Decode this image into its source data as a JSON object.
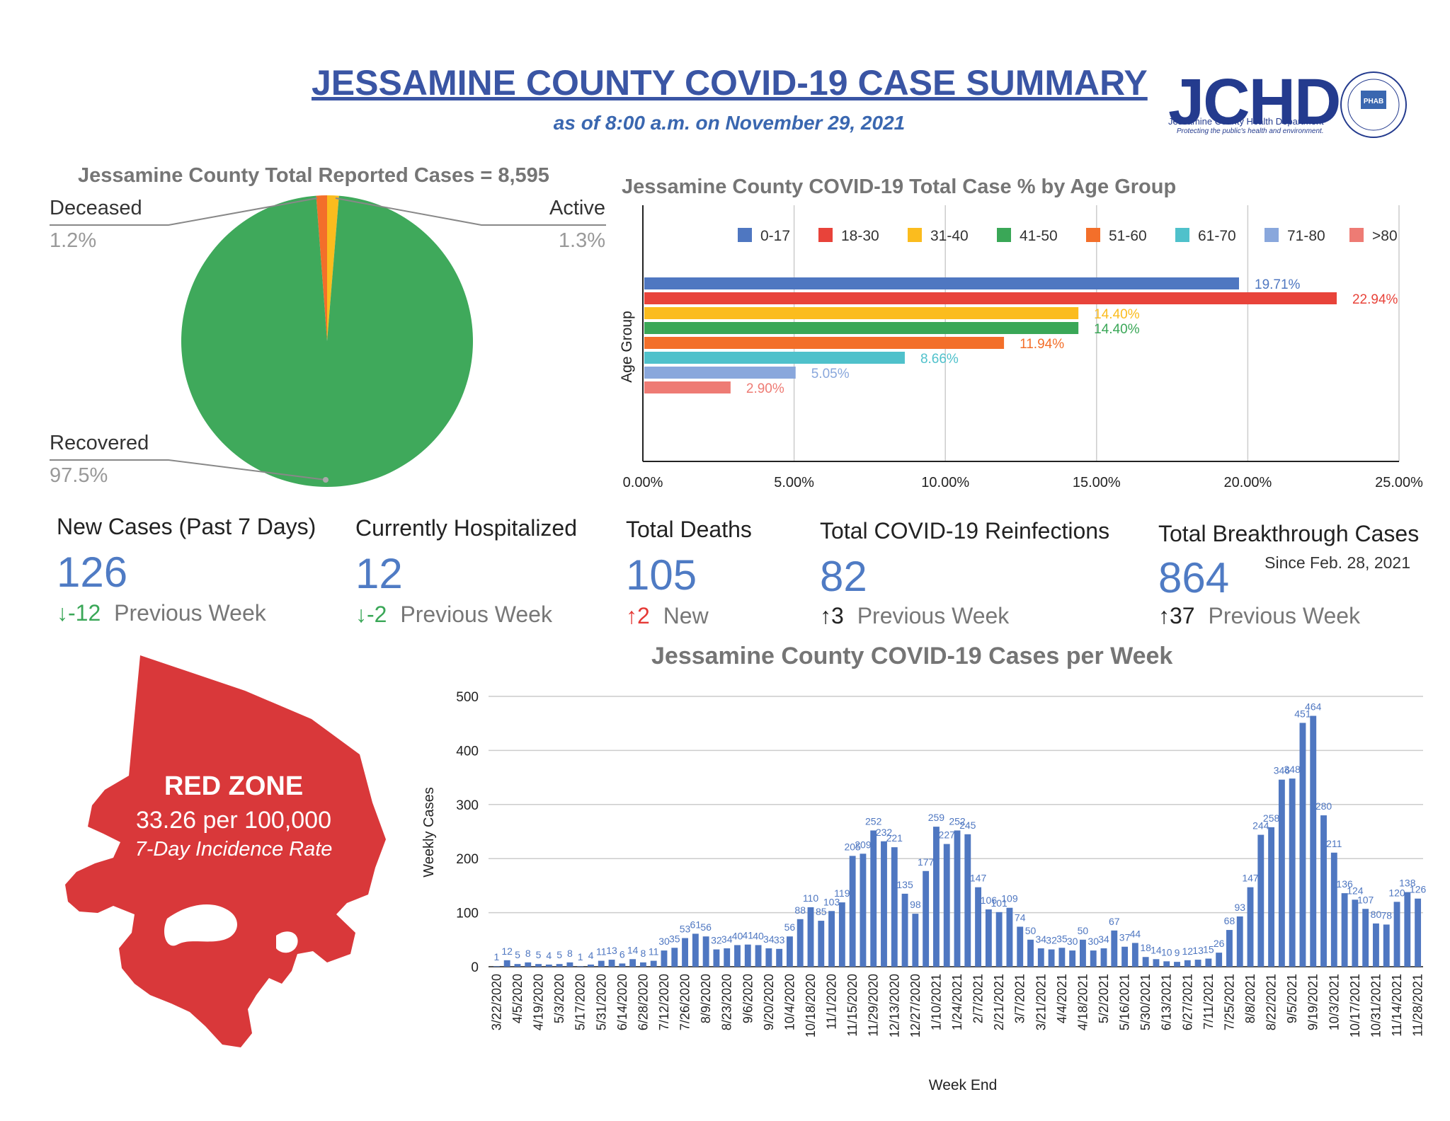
{
  "header": {
    "title": "JESSAMINE COUNTY COVID-19 CASE SUMMARY",
    "subtitle": "as of 8:00 a.m. on November 29, 2021",
    "logo_text": "JCHD",
    "logo_sub": "Jessamine County Health Department",
    "logo_tagline": "Protecting the public's health and environment.",
    "badge_text": "PHAB"
  },
  "colors": {
    "recovered": "#3fa95b",
    "deceased": "#f36f2a",
    "active": "#fbbc1e",
    "bar_blue": "#4f77c1",
    "zone_red": "#d9383a"
  },
  "stats": {
    "new_cases": {
      "label": "New Cases (Past 7 Days)",
      "value": "126",
      "arrow": "↓",
      "change": "-12",
      "note": "Previous Week"
    },
    "hospitalized": {
      "label": "Currently Hospitalized",
      "value": "12",
      "arrow": "↓",
      "change": "-2",
      "note": "Previous Week"
    },
    "deaths": {
      "label": "Total Deaths",
      "value": "105",
      "arrow": "↑",
      "change": "2",
      "note": "New"
    },
    "reinfections": {
      "label": "Total COVID-19 Reinfections",
      "value": "82",
      "arrow": "↑",
      "change": "3",
      "note": "Previous Week"
    },
    "breakthrough": {
      "label": "Total Breakthrough Cases",
      "value": "864",
      "since": "Since Feb. 28, 2021",
      "arrow": "↑",
      "change": "37",
      "note": "Previous Week"
    }
  },
  "zone": {
    "title": "RED ZONE",
    "rate": "33.26 per 100,000",
    "caption": "7-Day Incidence Rate"
  },
  "chart_data": [
    {
      "type": "pie",
      "title": "Jessamine County Total Reported Cases = 8,595",
      "labels": [
        "Recovered",
        "Deceased",
        "Active"
      ],
      "values": [
        97.5,
        1.2,
        1.3
      ],
      "value_labels": [
        "97.5%",
        "1.2%",
        "1.3%"
      ]
    },
    {
      "type": "bar",
      "orientation": "horizontal",
      "title": "Jessamine County COVID-19 Total Case % by Age Group",
      "ylabel": "Age Group",
      "xlim": [
        0,
        25
      ],
      "x_ticks": [
        "0.00%",
        "5.00%",
        "10.00%",
        "15.00%",
        "20.00%",
        "25.00%"
      ],
      "categories": [
        "0-17",
        "18-30",
        "31-40",
        "41-50",
        "51-60",
        "61-70",
        "71-80",
        ">80"
      ],
      "values": [
        19.71,
        22.94,
        14.4,
        14.4,
        11.94,
        8.66,
        5.05,
        2.9
      ],
      "value_labels": [
        "19.71%",
        "22.94%",
        "14.40%",
        "14.40%",
        "11.94%",
        "8.66%",
        "5.05%",
        "2.90%"
      ],
      "colors": [
        "#4f77c1",
        "#e8433a",
        "#fbbc1e",
        "#3aa757",
        "#f36f2a",
        "#4fc1cb",
        "#89a7dc",
        "#ee7b74"
      ],
      "legend_position": "top"
    },
    {
      "type": "bar",
      "title": "Jessamine County COVID-19 Cases per Week",
      "xlabel": "Week End",
      "ylabel": "Weekly Cases",
      "ylim": [
        0,
        500
      ],
      "y_ticks": [
        "0",
        "100",
        "200",
        "300",
        "400",
        "500"
      ],
      "x_tick_labels": [
        "3/22/2020",
        "4/5/2020",
        "4/19/2020",
        "5/3/2020",
        "5/17/2020",
        "5/31/2020",
        "6/14/2020",
        "6/28/2020",
        "7/12/2020",
        "7/26/2020",
        "8/9/2020",
        "8/23/2020",
        "9/6/2020",
        "9/20/2020",
        "10/4/2020",
        "10/18/2020",
        "11/1/2020",
        "11/15/2020",
        "11/29/2020",
        "12/13/2020",
        "12/27/2020",
        "1/10/2021",
        "1/24/2021",
        "2/7/2021",
        "2/21/2021",
        "3/7/2021",
        "3/21/2021",
        "4/4/2021",
        "4/18/2021",
        "5/2/2021",
        "5/16/2021",
        "5/30/2021",
        "6/13/2021",
        "6/27/2021",
        "7/11/2021",
        "7/25/2021",
        "8/8/2021",
        "8/22/2021",
        "9/5/2021",
        "9/19/2021",
        "10/3/2021",
        "10/17/2021",
        "10/31/2021",
        "11/14/2021",
        "11/28/2021"
      ],
      "values": [
        1,
        12,
        5,
        8,
        5,
        4,
        5,
        8,
        1,
        4,
        11,
        13,
        6,
        14,
        8,
        11,
        30,
        35,
        53,
        61,
        56,
        32,
        34,
        40,
        41,
        40,
        34,
        33,
        56,
        88,
        110,
        85,
        103,
        119,
        205,
        209,
        252,
        232,
        221,
        135,
        98,
        177,
        259,
        227,
        252,
        245,
        147,
        106,
        101,
        109,
        74,
        50,
        34,
        32,
        35,
        30,
        50,
        30,
        34,
        67,
        37,
        44,
        18,
        14,
        10,
        9,
        12,
        13,
        15,
        26,
        68,
        93,
        147,
        244,
        258,
        346,
        348,
        451,
        464,
        280,
        211,
        136,
        124,
        107,
        80,
        78,
        120,
        138,
        126
      ]
    }
  ]
}
